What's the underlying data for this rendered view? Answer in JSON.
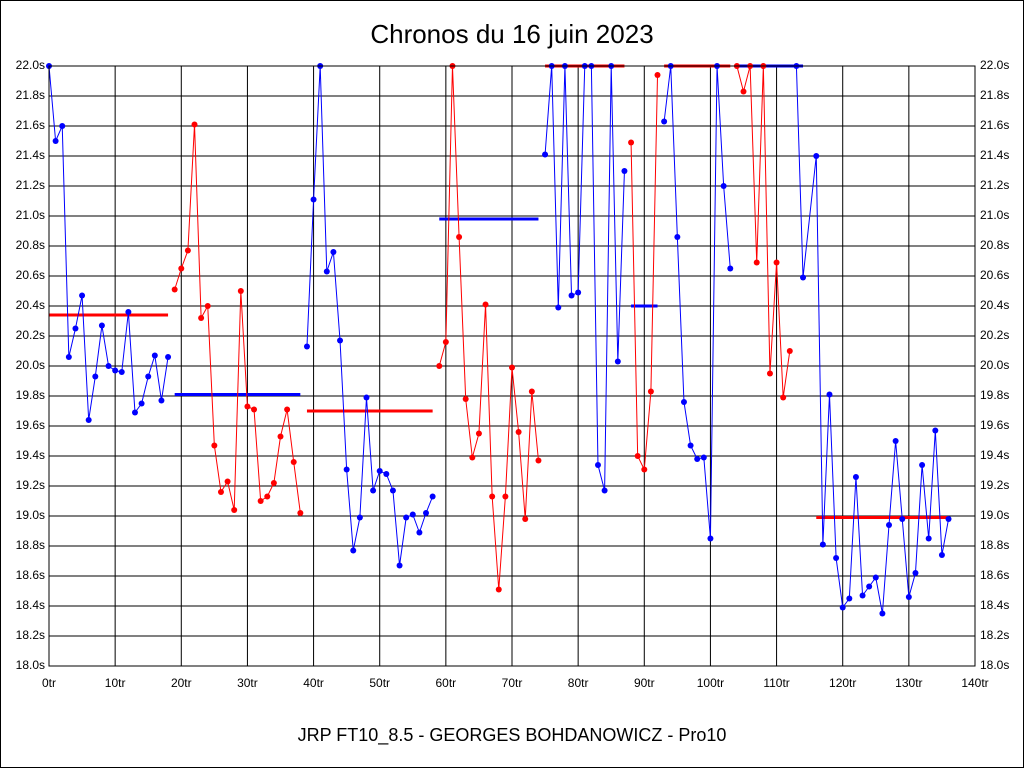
{
  "chart_data": {
    "type": "line",
    "title": "Chronos du 16 juin 2023",
    "footer": "JRP FT10_8.5 - GEORGES BOHDANOWICZ - Pro10",
    "xlim": [
      0,
      140
    ],
    "xticks": [
      {
        "value": 0,
        "label": "0tr"
      },
      {
        "value": 10,
        "label": "10tr"
      },
      {
        "value": 20,
        "label": "20tr"
      },
      {
        "value": 30,
        "label": "30tr"
      },
      {
        "value": 40,
        "label": "40tr"
      },
      {
        "value": 50,
        "label": "50tr"
      },
      {
        "value": 60,
        "label": "60tr"
      },
      {
        "value": 70,
        "label": "70tr"
      },
      {
        "value": 80,
        "label": "80tr"
      },
      {
        "value": 90,
        "label": "90tr"
      },
      {
        "value": 100,
        "label": "100tr"
      },
      {
        "value": 110,
        "label": "110tr"
      },
      {
        "value": 120,
        "label": "120tr"
      },
      {
        "value": 130,
        "label": "130tr"
      },
      {
        "value": 140,
        "label": "140tr"
      }
    ],
    "ylim": [
      18,
      22
    ],
    "yticks": [
      {
        "value": 18,
        "label": "18.0s"
      },
      {
        "value": 18.2,
        "label": "18.2s"
      },
      {
        "value": 18.4,
        "label": "18.4s"
      },
      {
        "value": 18.6,
        "label": "18.6s"
      },
      {
        "value": 18.8,
        "label": "18.8s"
      },
      {
        "value": 19,
        "label": "19.0s"
      },
      {
        "value": 19.2,
        "label": "19.2s"
      },
      {
        "value": 19.4,
        "label": "19.4s"
      },
      {
        "value": 19.6,
        "label": "19.6s"
      },
      {
        "value": 19.8,
        "label": "19.8s"
      },
      {
        "value": 20,
        "label": "20.0s"
      },
      {
        "value": 20.2,
        "label": "20.2s"
      },
      {
        "value": 20.4,
        "label": "20.4s"
      },
      {
        "value": 20.6,
        "label": "20.6s"
      },
      {
        "value": 20.8,
        "label": "20.8s"
      },
      {
        "value": 21,
        "label": "21.0s"
      },
      {
        "value": 21.2,
        "label": "21.2s"
      },
      {
        "value": 21.4,
        "label": "21.4s"
      },
      {
        "value": 21.6,
        "label": "21.6s"
      },
      {
        "value": 21.8,
        "label": "21.8s"
      },
      {
        "value": 22,
        "label": "22.0s"
      }
    ],
    "grid": true,
    "series": [
      {
        "color": "#0000ff",
        "x": [
          0,
          1,
          2,
          3,
          4,
          5,
          6,
          7,
          8,
          9,
          10,
          11,
          12,
          13,
          14,
          15,
          16,
          17,
          18
        ],
        "values": [
          22.0,
          21.5,
          21.6,
          20.06,
          20.25,
          20.47,
          19.64,
          19.93,
          20.27,
          20.0,
          19.97,
          19.96,
          20.36,
          19.69,
          19.75,
          19.93,
          20.07,
          19.77,
          20.06
        ]
      },
      {
        "color": "#ff0000",
        "x": [
          19,
          20,
          21,
          22,
          23,
          24,
          25,
          26,
          27,
          28,
          29,
          30,
          31,
          32,
          33,
          34,
          35,
          36,
          37,
          38
        ],
        "values": [
          20.51,
          20.65,
          20.77,
          21.61,
          20.32,
          20.4,
          19.47,
          19.16,
          19.23,
          19.04,
          20.5,
          19.73,
          19.71,
          19.1,
          19.13,
          19.22,
          19.53,
          19.71,
          19.36,
          19.02
        ]
      },
      {
        "color": "#0000ff",
        "x": [
          39,
          40,
          41,
          42,
          43,
          44,
          45,
          46,
          47,
          48,
          49,
          50,
          51,
          52,
          53,
          54,
          55,
          56,
          57,
          58
        ],
        "values": [
          20.13,
          21.11,
          22.0,
          20.63,
          20.76,
          20.17,
          19.31,
          18.77,
          18.99,
          19.79,
          19.17,
          19.3,
          19.28,
          19.17,
          18.67,
          18.99,
          19.01,
          18.89,
          19.02,
          19.13
        ]
      },
      {
        "color": "#ff0000",
        "x": [
          59,
          60,
          61,
          62,
          63,
          64,
          65,
          66,
          67,
          68,
          69,
          70,
          71,
          72,
          73,
          74
        ],
        "values": [
          20.0,
          20.16,
          22.0,
          20.86,
          19.78,
          19.39,
          19.55,
          20.41,
          19.13,
          18.51,
          19.13,
          19.99,
          19.56,
          18.98,
          19.83,
          19.37
        ]
      },
      {
        "color": "#0000ff",
        "x": [
          75,
          76,
          77,
          78,
          79,
          80,
          81,
          82,
          83,
          84,
          85,
          86,
          87
        ],
        "values": [
          21.41,
          22.0,
          20.39,
          22.0,
          20.47,
          20.49,
          22.0,
          22.0,
          19.34,
          19.17,
          22.0,
          20.03,
          21.3
        ]
      },
      {
        "color": "#ff0000",
        "x": [
          88,
          89,
          90,
          91,
          92
        ],
        "values": [
          21.49,
          19.4,
          19.31,
          19.83,
          21.94
        ]
      },
      {
        "color": "#0000ff",
        "x": [
          93,
          94,
          95,
          96,
          97,
          98,
          99,
          100,
          101,
          102,
          103
        ],
        "values": [
          21.63,
          22.0,
          20.86,
          19.76,
          19.47,
          19.38,
          19.39,
          18.85,
          22.0,
          21.2,
          20.65
        ]
      },
      {
        "color": "#ff0000",
        "x": [
          104,
          105,
          106,
          107,
          108,
          109,
          110,
          111,
          112
        ],
        "values": [
          22.0,
          21.83,
          22.0,
          20.69,
          22.0,
          19.95,
          20.69,
          19.79,
          20.1
        ]
      },
      {
        "color": "#0000ff",
        "x": [
          113,
          114,
          116,
          117,
          118,
          119,
          120,
          121,
          122,
          123,
          124,
          125,
          126,
          127,
          128,
          129,
          130,
          131,
          132,
          133,
          134,
          135,
          136
        ],
        "values": [
          22.0,
          20.59,
          21.4,
          18.81,
          19.81,
          18.72,
          18.39,
          18.45,
          19.26,
          18.47,
          18.53,
          18.59,
          18.35,
          18.94,
          19.5,
          18.98,
          18.46,
          18.62,
          19.34,
          18.85,
          19.57,
          18.74,
          18.98
        ]
      }
    ],
    "averages": [
      {
        "color": "#ff0000",
        "x": [
          0,
          18
        ],
        "value": 20.34
      },
      {
        "color": "#0000ff",
        "x": [
          19,
          38
        ],
        "value": 19.81
      },
      {
        "color": "#ff0000",
        "x": [
          39,
          58
        ],
        "value": 19.7
      },
      {
        "color": "#0000ff",
        "x": [
          59,
          74
        ],
        "value": 20.98
      },
      {
        "color": "#ff0000",
        "x": [
          75,
          87
        ],
        "value": 22.0
      },
      {
        "color": "#0000ff",
        "x": [
          88,
          92
        ],
        "value": 20.4
      },
      {
        "color": "#ff0000",
        "x": [
          93,
          103
        ],
        "value": 22.0
      },
      {
        "color": "#0000ff",
        "x": [
          104,
          114
        ],
        "value": 22.0
      },
      {
        "color": "#ff0000",
        "x": [
          116,
          136
        ],
        "value": 18.99
      }
    ]
  }
}
